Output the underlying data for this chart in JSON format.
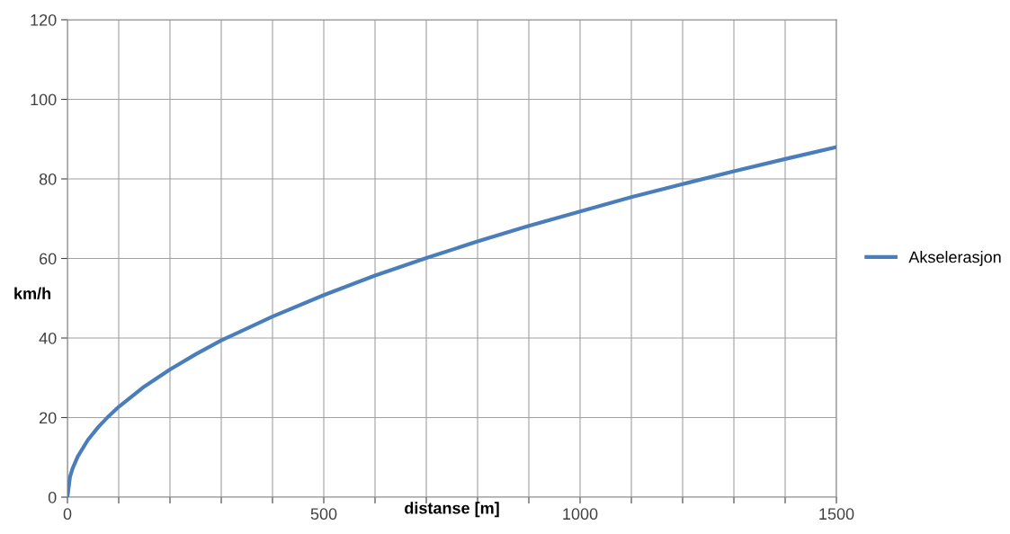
{
  "chart_data": {
    "type": "line",
    "xlabel": "distanse [m]",
    "ylabel": "km/h",
    "x": [
      0,
      5,
      10,
      20,
      40,
      60,
      80,
      100,
      150,
      200,
      250,
      300,
      400,
      500,
      600,
      700,
      800,
      900,
      1000,
      1100,
      1200,
      1300,
      1400,
      1500
    ],
    "series": [
      {
        "name": "Akselerasjon",
        "color": "#4a7ebb",
        "values": [
          0,
          5.1,
          7.2,
          10.2,
          14.4,
          17.6,
          20.3,
          22.7,
          27.8,
          32.1,
          35.9,
          39.4,
          45.4,
          50.8,
          55.7,
          60.1,
          64.3,
          68.2,
          71.8,
          75.4,
          78.7,
          81.9,
          85.0,
          88.0
        ]
      }
    ],
    "xlim": [
      0,
      1500
    ],
    "ylim": [
      0,
      120
    ],
    "xticks": [
      0,
      {
        "value": 100,
        "label": null
      },
      {
        "value": 200,
        "label": null
      },
      {
        "value": 300,
        "label": null
      },
      {
        "value": 400,
        "label": null
      },
      500,
      {
        "value": 600,
        "label": null
      },
      {
        "value": 700,
        "label": null
      },
      {
        "value": 800,
        "label": null
      },
      {
        "value": 900,
        "label": null
      },
      1000,
      {
        "value": 1100,
        "label": null
      },
      {
        "value": 1200,
        "label": null
      },
      {
        "value": 1300,
        "label": null
      },
      {
        "value": 1400,
        "label": null
      },
      1500
    ],
    "yticks": [
      0,
      20,
      40,
      60,
      80,
      100,
      120
    ],
    "grid": true,
    "legend": "right",
    "marker": "none",
    "line_style": "solid"
  }
}
